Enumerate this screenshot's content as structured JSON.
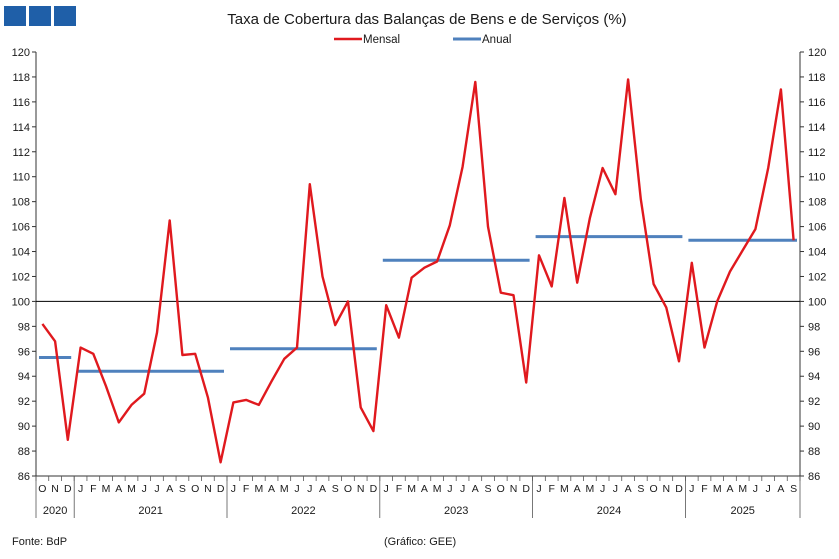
{
  "footer": {
    "source": "Fonte: BdP",
    "credit": "(Gráfico: GEE)"
  },
  "colors": {
    "brand": "#1f5fa8",
    "mensal": "#e0191e",
    "anual": "#4f81bd"
  },
  "chart_data": {
    "type": "line",
    "title": "Taxa de Cobertura das Balanças de Bens e de Serviços (%)",
    "ylim": [
      86,
      120
    ],
    "ytick_step": 2,
    "reference_line": 100,
    "legend_position": "top-center",
    "month_labels": [
      "O",
      "N",
      "D",
      "J",
      "F",
      "M",
      "A",
      "M",
      "J",
      "J",
      "A",
      "S",
      "O",
      "N",
      "D",
      "J",
      "F",
      "M",
      "A",
      "M",
      "J",
      "J",
      "A",
      "S",
      "O",
      "N",
      "D",
      "J",
      "F",
      "M",
      "A",
      "M",
      "J",
      "J",
      "A",
      "S",
      "O",
      "N",
      "D",
      "J",
      "F",
      "M",
      "A",
      "M",
      "J",
      "J",
      "A",
      "S",
      "O",
      "N",
      "D",
      "J",
      "F",
      "M",
      "A",
      "M",
      "J",
      "J",
      "A",
      "S"
    ],
    "years": [
      {
        "label": "2020",
        "start": 0,
        "end": 2
      },
      {
        "label": "2021",
        "start": 3,
        "end": 14
      },
      {
        "label": "2022",
        "start": 15,
        "end": 26
      },
      {
        "label": "2023",
        "start": 27,
        "end": 38
      },
      {
        "label": "2024",
        "start": 39,
        "end": 50
      },
      {
        "label": "2025",
        "start": 51,
        "end": 59
      }
    ],
    "series": [
      {
        "name": "Mensal",
        "color": "#e0191e",
        "values": [
          98.2,
          96.8,
          88.9,
          96.3,
          95.8,
          93.2,
          90.3,
          91.7,
          92.6,
          97.5,
          106.5,
          95.7,
          95.8,
          92.3,
          87.1,
          91.9,
          92.1,
          91.7,
          93.6,
          95.4,
          96.3,
          109.4,
          102.0,
          98.1,
          100.0,
          91.5,
          89.6,
          99.7,
          97.1,
          101.9,
          102.7,
          103.2,
          106.1,
          110.8,
          117.6,
          106.0,
          100.7,
          100.5,
          93.5,
          103.7,
          101.2,
          108.3,
          101.5,
          106.7,
          110.7,
          108.6,
          117.8,
          108.2,
          101.4,
          99.5,
          95.2,
          103.1,
          96.3,
          100.0,
          102.4,
          104.1,
          105.8,
          110.7,
          117.0,
          104.9
        ]
      },
      {
        "name": "Anual",
        "color": "#4f81bd",
        "segments": [
          {
            "start": 0,
            "end": 2,
            "value": 95.5
          },
          {
            "start": 3,
            "end": 14,
            "value": 94.4
          },
          {
            "start": 15,
            "end": 26,
            "value": 96.2
          },
          {
            "start": 27,
            "end": 38,
            "value": 103.3
          },
          {
            "start": 39,
            "end": 50,
            "value": 105.2
          },
          {
            "start": 51,
            "end": 59,
            "value": 104.9
          }
        ]
      }
    ]
  }
}
